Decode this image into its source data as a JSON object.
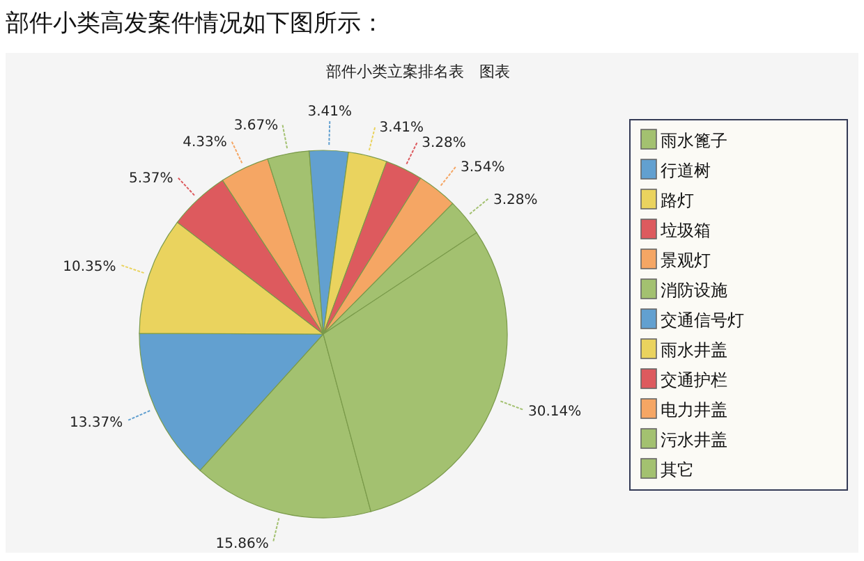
{
  "chart_data": {
    "type": "pie",
    "title": "部件小类立案排名表　图表",
    "annotations": [
      "部件小类高发案件情况如下图所示："
    ],
    "categories": [
      "雨水篦子",
      "行道树",
      "路灯",
      "垃圾箱",
      "景观灯",
      "消防设施",
      "交通信号灯",
      "雨水井盖",
      "交通护栏",
      "电力井盖",
      "污水井盖",
      "其它"
    ],
    "values": [
      15.86,
      13.37,
      10.35,
      5.37,
      4.33,
      3.67,
      3.41,
      3.41,
      3.28,
      3.54,
      3.28,
      30.14
    ],
    "value_labels": [
      "15.86%",
      "13.37%",
      "10.35%",
      "5.37%",
      "4.33%",
      "3.67%",
      "3.41%",
      "3.41%",
      "3.28%",
      "3.54%",
      "3.28%",
      "30.14%"
    ],
    "colors": [
      "#a3c170",
      "#62a0d0",
      "#ead35e",
      "#dd5a5e",
      "#f5a664",
      "#a3c170",
      "#62a0d0",
      "#ead35e",
      "#dd5a5e",
      "#f5a664",
      "#a3c170",
      "#a3c170"
    ],
    "legend": "right"
  }
}
